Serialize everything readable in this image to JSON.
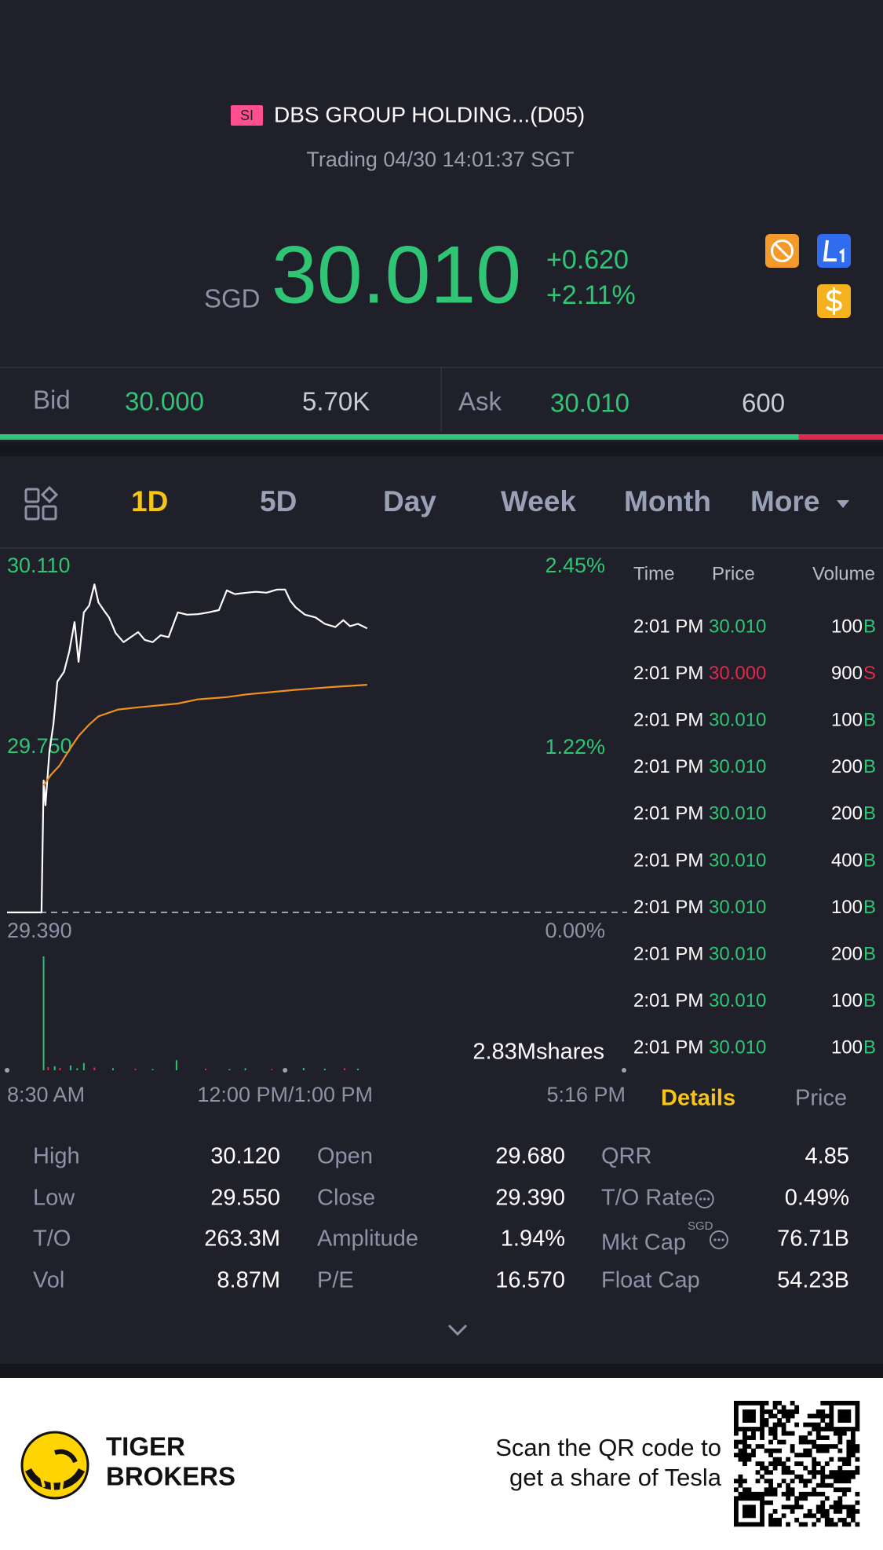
{
  "header": {
    "badge": "SI",
    "title": "DBS GROUP HOLDING...(D05)",
    "status": "Trading 04/30 14:01:37 SGT"
  },
  "quote": {
    "currency": "SGD",
    "price": "30.010",
    "change": "+0.620",
    "change_pct": "+2.11%"
  },
  "order_book": {
    "bid_label": "Bid",
    "bid_price": "30.000",
    "bid_size": {
      "value": 5700,
      "label": "5.70K"
    },
    "ask_label": "Ask",
    "ask_price": "30.010",
    "ask_size": {
      "value": 600,
      "label": "600"
    }
  },
  "tabs": {
    "items": [
      "1D",
      "5D",
      "Day",
      "Week",
      "Month",
      "More"
    ],
    "active": 0
  },
  "chart_data": {
    "type": "line",
    "xlim": [
      0,
      466
    ],
    "xticks": [
      {
        "value": 0,
        "label": "8:30 AM"
      },
      {
        "value": 210,
        "label": "12:00 PM/1:00 PM"
      },
      {
        "value": 466,
        "label": "5:16 PM"
      }
    ],
    "ylim": [
      29.39,
      30.11
    ],
    "yticks": [
      {
        "value": 30.11,
        "label": "30.110"
      },
      {
        "value": 29.75,
        "label": "29.750"
      },
      {
        "value": 29.39,
        "label": "29.390"
      }
    ],
    "y2lim": [
      0,
      2.45
    ],
    "y2ticks": [
      {
        "value": 2.45,
        "label": "2.45%"
      },
      {
        "value": 1.22,
        "label": "1.22%"
      },
      {
        "value": 0,
        "label": "0.00%"
      }
    ],
    "series": [
      {
        "color": "#ffffff",
        "x": [
          0,
          26,
          27.6,
          29,
          32,
          35,
          38,
          43,
          47,
          51,
          54,
          58,
          62,
          66,
          69,
          73,
          77,
          82,
          88,
          93,
          99,
          104,
          110,
          116,
          122,
          129,
          136,
          144,
          152,
          160,
          166,
          172,
          181,
          188,
          196,
          204,
          210,
          214,
          218,
          225,
          233,
          240,
          248,
          254,
          259,
          265,
          272
        ],
        "values": [
          29.39,
          29.39,
          29.678,
          29.624,
          29.742,
          29.8,
          29.894,
          29.915,
          29.96,
          30.024,
          29.937,
          30.045,
          30.06,
          30.106,
          30.067,
          30.05,
          30.034,
          30.0,
          29.98,
          29.99,
          30.002,
          29.985,
          29.98,
          29.995,
          29.991,
          30.045,
          30.04,
          30.041,
          30.045,
          30.05,
          30.093,
          30.085,
          30.088,
          30.09,
          30.088,
          30.095,
          30.095,
          30.07,
          30.056,
          30.04,
          30.034,
          30.02,
          30.013,
          30.028,
          30.015,
          30.02,
          30.01
        ]
      },
      {
        "color": "#f0901e",
        "x": [
          27.6,
          33,
          39.5,
          47,
          54,
          62,
          69,
          84,
          100,
          129,
          144,
          166,
          181,
          200,
          218,
          245,
          272
        ],
        "values": [
          29.667,
          29.69,
          29.71,
          29.745,
          29.775,
          29.8,
          29.818,
          29.833,
          29.838,
          29.846,
          29.855,
          29.86,
          29.866,
          29.871,
          29.876,
          29.882,
          29.887
        ]
      }
    ],
    "volume": {
      "ylim": [
        0,
        2.83
      ],
      "yticks": [
        {
          "value": 2.83,
          "label": "2.83Mshares"
        }
      ],
      "x": [
        27.6,
        31,
        36,
        40,
        48,
        53,
        58,
        66,
        80,
        97,
        110,
        128,
        150,
        168,
        180,
        200,
        224,
        240,
        255,
        265
      ],
      "values": [
        2.83,
        0.08,
        0.1,
        0.06,
        0.12,
        0.05,
        0.18,
        0.07,
        0.05,
        0.04,
        0.03,
        0.25,
        0.04,
        0.03,
        0.05,
        0.03,
        0.06,
        0.04,
        0.05,
        0.04
      ],
      "colors": [
        "#2fbf71",
        "#e0294a",
        "#2fbf71",
        "#e0294a",
        "#2fbf71",
        "#2fbf71",
        "#2fbf71",
        "#e0294a",
        "#2fbf71",
        "#e0294a",
        "#2fbf71",
        "#2fbf71",
        "#e0294a",
        "#2fbf71",
        "#2fbf71",
        "#e0294a",
        "#2fbf71",
        "#2fbf71",
        "#e0294a",
        "#2fbf71"
      ]
    }
  },
  "trades": {
    "columns": [
      "Time",
      "Price",
      "Volume"
    ],
    "rows": [
      {
        "time": "2:01 PM",
        "price": "30.010",
        "volume": "100",
        "side": "B"
      },
      {
        "time": "2:01 PM",
        "price": "30.000",
        "volume": "900",
        "side": "S"
      },
      {
        "time": "2:01 PM",
        "price": "30.010",
        "volume": "100",
        "side": "B"
      },
      {
        "time": "2:01 PM",
        "price": "30.010",
        "volume": "200",
        "side": "B"
      },
      {
        "time": "2:01 PM",
        "price": "30.010",
        "volume": "200",
        "side": "B"
      },
      {
        "time": "2:01 PM",
        "price": "30.010",
        "volume": "400",
        "side": "B"
      },
      {
        "time": "2:01 PM",
        "price": "30.010",
        "volume": "100",
        "side": "B"
      },
      {
        "time": "2:01 PM",
        "price": "30.010",
        "volume": "200",
        "side": "B"
      },
      {
        "time": "2:01 PM",
        "price": "30.010",
        "volume": "100",
        "side": "B"
      },
      {
        "time": "2:01 PM",
        "price": "30.010",
        "volume": "100",
        "side": "B"
      }
    ]
  },
  "panel_tabs": {
    "items": [
      "Details",
      "Price"
    ],
    "active": 0
  },
  "stats": [
    [
      {
        "label": "High",
        "value": "30.120"
      },
      {
        "label": "Low",
        "value": "29.550"
      },
      {
        "label": "T/O",
        "value": "263.3M"
      },
      {
        "label": "Vol",
        "value": "8.87M"
      }
    ],
    [
      {
        "label": "Open",
        "value": "29.680"
      },
      {
        "label": "Close",
        "value": "29.390"
      },
      {
        "label": "Amplitude",
        "value": "1.94%"
      },
      {
        "label": "P/E",
        "value": "16.570"
      }
    ],
    [
      {
        "label": "QRR",
        "value": "4.85"
      },
      {
        "label": "T/O Rate",
        "value": "0.49%",
        "info": true
      },
      {
        "label": "Mkt Cap",
        "unit": "SGD",
        "value": "76.71B",
        "info": true
      },
      {
        "label": "Float Cap",
        "value": "54.23B"
      }
    ]
  ],
  "footer": {
    "brand": [
      "TIGER",
      "BROKERS"
    ],
    "promo": [
      "Scan the QR code to",
      "get a share of Tesla"
    ]
  }
}
